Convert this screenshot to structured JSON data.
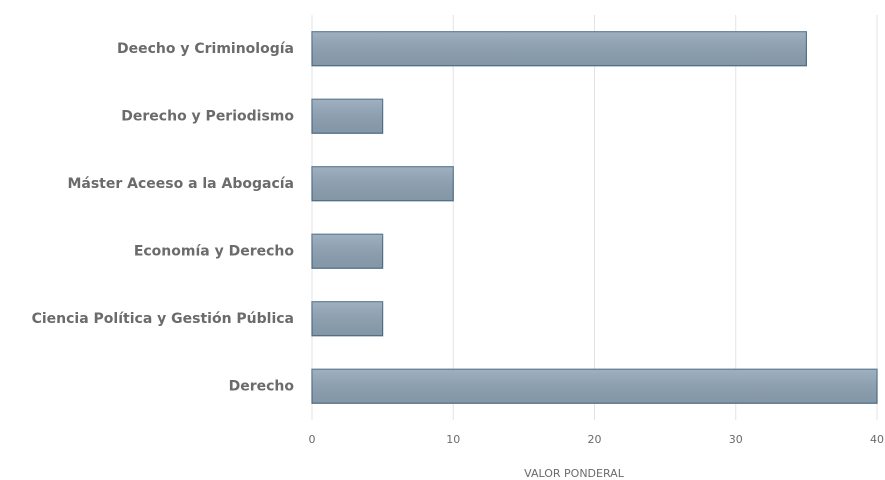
{
  "chart_data": {
    "type": "bar",
    "orientation": "horizontal",
    "categories": [
      "Deecho y Criminología",
      "Derecho y Periodismo",
      "Máster Aceeso a la Abogacía",
      "Economía y Derecho",
      "Ciencia Política y Gestión Pública",
      "Derecho"
    ],
    "values": [
      35,
      5,
      10,
      5,
      5,
      40
    ],
    "color": "#8fa4b6",
    "x_label": "VALOR PONDERAL",
    "xlim": [
      0,
      40
    ],
    "xticks": [
      0,
      10,
      20,
      30,
      40
    ],
    "grid": true
  }
}
